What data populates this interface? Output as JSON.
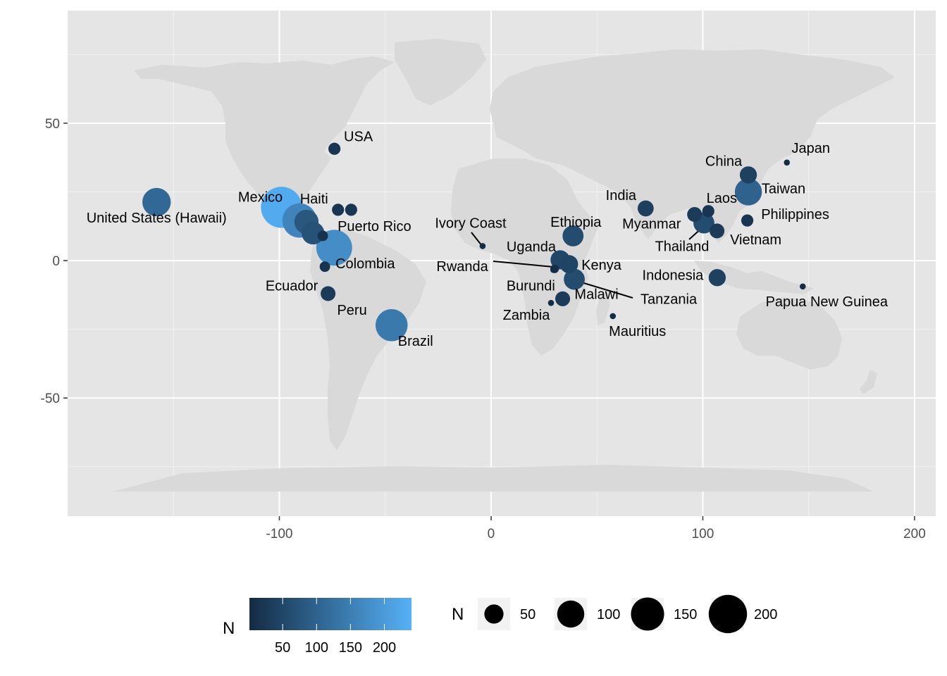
{
  "chart_data": {
    "type": "scatter",
    "title": "",
    "xlabel": "",
    "ylabel": "",
    "xlim": [
      -200,
      210
    ],
    "ylim": [
      -93,
      91
    ],
    "x_ticks": [
      -100,
      0,
      100,
      200
    ],
    "x_tick_labels": [
      "-100",
      "0",
      "100",
      "200"
    ],
    "y_ticks": [
      -50,
      0,
      50
    ],
    "y_tick_labels": [
      "-50",
      "0",
      "50"
    ],
    "grid": true,
    "background": "#e5e5e5",
    "land_color": "#d9d9d9",
    "color_scale": {
      "low": "#132b43",
      "high": "#56b1f7",
      "min": 1,
      "max": 240
    },
    "points": [
      {
        "name": "United States (Hawaii)",
        "lon": -158,
        "lat": 21.3,
        "n": 110
      },
      {
        "name": "USA",
        "lon": -74,
        "lat": 40.7,
        "n": 20
      },
      {
        "name": "Mexico",
        "lon": -99,
        "lat": 19.4,
        "n": 230
      },
      {
        "name": "Haiti",
        "lon": -72.3,
        "lat": 18.5,
        "n": 20
      },
      {
        "name": "Puerto Rico",
        "lon": -66.1,
        "lat": 18.5,
        "n": 20
      },
      {
        "name": "",
        "lon": -90.5,
        "lat": 14.6,
        "n": 160
      },
      {
        "name": "",
        "lon": -87.2,
        "lat": 14.1,
        "n": 80
      },
      {
        "name": "",
        "lon": -84.1,
        "lat": 10.0,
        "n": 70
      },
      {
        "name": "",
        "lon": -79.5,
        "lat": 9.0,
        "n": 15
      },
      {
        "name": "Colombia",
        "lon": -74.1,
        "lat": 4.7,
        "n": 175
      },
      {
        "name": "Ecuador",
        "lon": -78.5,
        "lat": -2.2,
        "n": 15
      },
      {
        "name": "Peru",
        "lon": -77.0,
        "lat": -12.0,
        "n": 30
      },
      {
        "name": "Brazil",
        "lon": -47.0,
        "lat": -23.5,
        "n": 140
      },
      {
        "name": "Ivory Coast",
        "lon": -4.0,
        "lat": 5.3,
        "n": 5
      },
      {
        "name": "Ethiopia",
        "lon": 38.7,
        "lat": 9.0,
        "n": 60
      },
      {
        "name": "Uganda",
        "lon": 32.6,
        "lat": 0.3,
        "n": 50
      },
      {
        "name": "Kenya",
        "lon": 36.8,
        "lat": -1.3,
        "n": 45
      },
      {
        "name": "Rwanda",
        "lon": 30.0,
        "lat": -3.0,
        "n": 10
      },
      {
        "name": "Burundi",
        "lon": 29.4,
        "lat": -3.4,
        "n": 5
      },
      {
        "name": "Tanzania",
        "lon": 39.3,
        "lat": -6.8,
        "n": 60
      },
      {
        "name": "Malawi",
        "lon": 33.8,
        "lat": -13.9,
        "n": 30
      },
      {
        "name": "Zambia",
        "lon": 28.3,
        "lat": -15.4,
        "n": 5
      },
      {
        "name": "Mauritius",
        "lon": 57.5,
        "lat": -20.2,
        "n": 5
      },
      {
        "name": "India",
        "lon": 73.0,
        "lat": 19.0,
        "n": 35
      },
      {
        "name": "Myanmar",
        "lon": 96.1,
        "lat": 16.8,
        "n": 30
      },
      {
        "name": "Laos",
        "lon": 102.6,
        "lat": 18.0,
        "n": 20
      },
      {
        "name": "Thailand",
        "lon": 100.5,
        "lat": 13.7,
        "n": 60
      },
      {
        "name": "Vietnam",
        "lon": 106.7,
        "lat": 10.8,
        "n": 30
      },
      {
        "name": "China",
        "lon": 121.5,
        "lat": 31.2,
        "n": 40
      },
      {
        "name": "Taiwan",
        "lon": 121.5,
        "lat": 25.0,
        "n": 100
      },
      {
        "name": "Philippines",
        "lon": 121.0,
        "lat": 14.6,
        "n": 20
      },
      {
        "name": "Japan",
        "lon": 139.7,
        "lat": 35.7,
        "n": 5
      },
      {
        "name": "Indonesia",
        "lon": 106.8,
        "lat": -6.2,
        "n": 40
      },
      {
        "name": "Papua New Guinea",
        "lon": 147.2,
        "lat": -9.4,
        "n": 5
      }
    ],
    "legends": {
      "color": {
        "title": "N",
        "breaks": [
          "50",
          "100",
          "150",
          "200"
        ]
      },
      "size": {
        "title": "N",
        "breaks": [
          "50",
          "100",
          "150",
          "200"
        ]
      }
    }
  }
}
